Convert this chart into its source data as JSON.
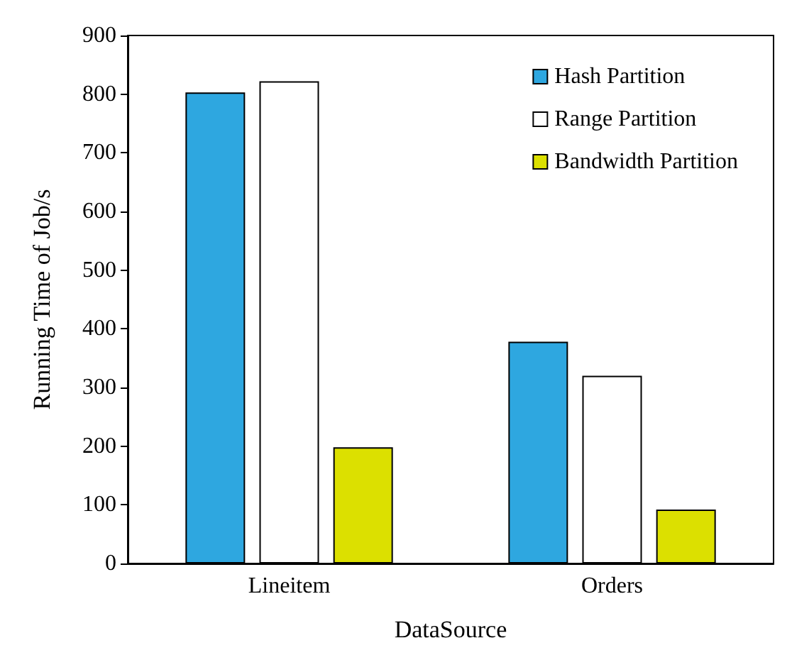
{
  "chart_data": {
    "type": "bar",
    "xlabel": "DataSource",
    "ylabel": "Running Time of Job/s",
    "categories": [
      "Lineitem",
      "Orders"
    ],
    "series": [
      {
        "name": "Hash Partition",
        "color": "#2ea7e0",
        "values": [
          803,
          378
        ]
      },
      {
        "name": "Range Partition",
        "color": "#ffffff",
        "values": [
          822,
          320
        ]
      },
      {
        "name": "Bandwidth Partition",
        "color": "#dce000",
        "values": [
          198,
          92
        ]
      }
    ],
    "ylim": [
      0,
      900
    ],
    "yticks": [
      0,
      100,
      200,
      300,
      400,
      500,
      600,
      700,
      800,
      900
    ],
    "grid": false,
    "legend": "top right"
  }
}
